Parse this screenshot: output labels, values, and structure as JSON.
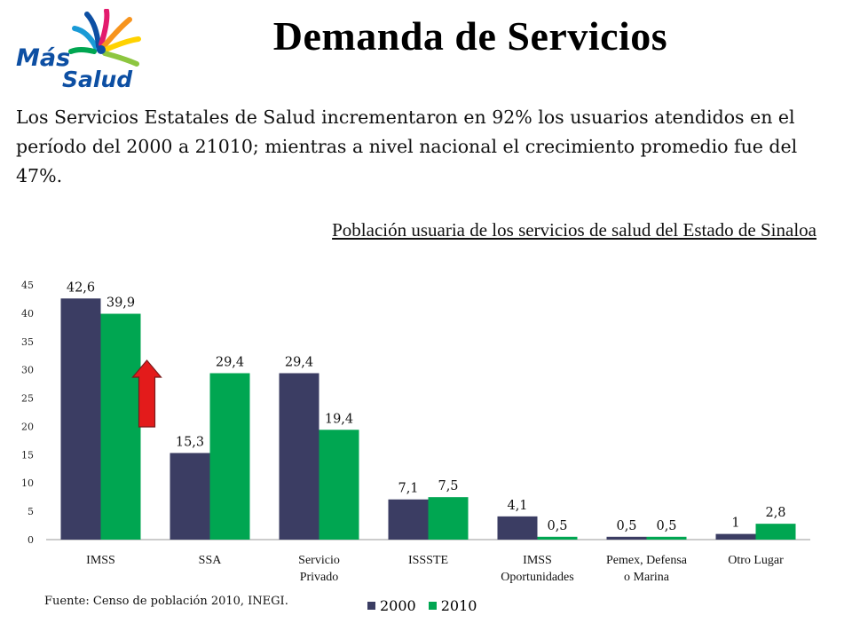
{
  "logo": {
    "line1": "Más",
    "line2": "Salud"
  },
  "header": {
    "title": "Demanda de Servicios"
  },
  "intro": "Los Servicios Estatales de Salud incrementaron en 92% los usuarios atendidos en el período del 2000 a 21010; mientras a nivel nacional el crecimiento promedio fue del 47%.",
  "source": "Fuente: Censo de población 2010, INEGI.",
  "colors": {
    "s2000": "#3b3d63",
    "s2010": "#00a651",
    "arrow": "#e31b1b"
  },
  "chart_data": {
    "type": "bar",
    "title": "Población usuaria de los servicios de salud del Estado de Sinaloa",
    "categories": [
      [
        "IMSS"
      ],
      [
        "SSA"
      ],
      [
        "Servicio",
        "Privado"
      ],
      [
        "ISSSTE"
      ],
      [
        "IMSS",
        "Oportunidades"
      ],
      [
        "Pemex, Defensa",
        "o Marina"
      ],
      [
        "Otro Lugar"
      ]
    ],
    "series": [
      {
        "name": "2000",
        "values": [
          42.6,
          15.3,
          29.4,
          7.1,
          4.1,
          0.5,
          1
        ],
        "labels": [
          "42,6",
          "15,3",
          "29,4",
          "7,1",
          "4,1",
          "0,5",
          "1"
        ]
      },
      {
        "name": "2010",
        "values": [
          39.9,
          29.4,
          19.4,
          7.5,
          0.5,
          0.5,
          2.8
        ],
        "labels": [
          "39,9",
          "29,4",
          "19,4",
          "7,5",
          "0,5",
          "0,5",
          "2,8"
        ]
      }
    ],
    "ylim": [
      0,
      45
    ],
    "yticks": [
      0,
      5,
      10,
      15,
      20,
      25,
      30,
      35,
      40,
      45
    ],
    "grid": false,
    "legend": "bottom",
    "annotation": "red-up-arrow-on-SSA"
  }
}
